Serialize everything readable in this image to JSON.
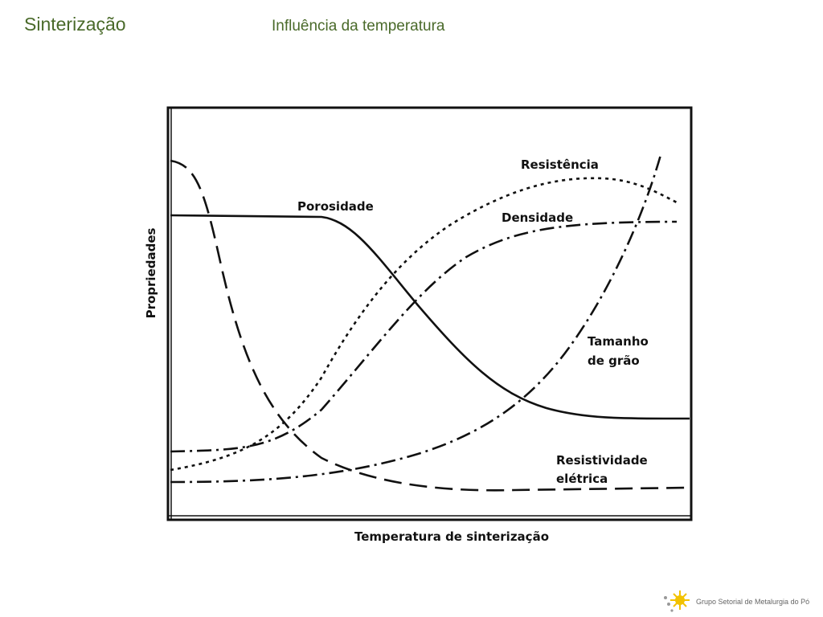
{
  "header": {
    "title": "Sinterização",
    "subtitle": "Influência da temperatura"
  },
  "diagram": {
    "y_label": "Propriedades",
    "x_label": "Temperatura de sinterização",
    "curves": [
      {
        "lines": [
          "Resistência"
        ]
      },
      {
        "lines": [
          "Porosidade"
        ]
      },
      {
        "lines": [
          "Densidade"
        ]
      },
      {
        "lines": [
          "Tamanho",
          "de grão"
        ]
      },
      {
        "lines": [
          "Resistividade",
          "elétrica"
        ]
      }
    ]
  },
  "footer": {
    "text": "Grupo Setorial de Metalurgia do Pó"
  }
}
